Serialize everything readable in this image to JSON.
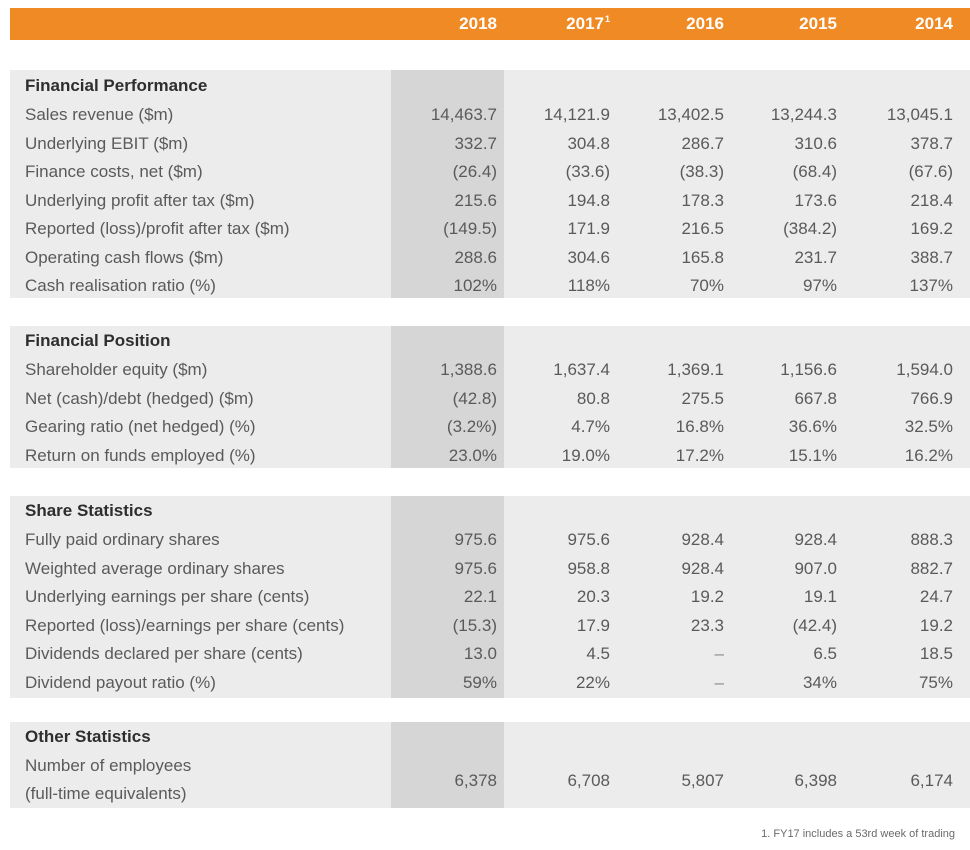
{
  "header": {
    "years": [
      {
        "label": "2018",
        "sup": ""
      },
      {
        "label": "2017",
        "sup": "1"
      },
      {
        "label": "2016",
        "sup": ""
      },
      {
        "label": "2015",
        "sup": ""
      },
      {
        "label": "2014",
        "sup": ""
      }
    ],
    "accent_color": "#f08a24",
    "highlight_column_color": "#d6d6d6",
    "panel_color": "#ececec"
  },
  "sections": [
    {
      "title": "Financial Performance",
      "rows": [
        {
          "label": "Sales revenue ($m)",
          "values": [
            "14,463.7",
            "14,121.9",
            "13,402.5",
            "13,244.3",
            "13,045.1"
          ]
        },
        {
          "label": "Underlying EBIT ($m)",
          "values": [
            "332.7",
            "304.8",
            "286.7",
            "310.6",
            "378.7"
          ]
        },
        {
          "label": "Finance costs, net ($m)",
          "values": [
            "(26.4)",
            "(33.6)",
            "(38.3)",
            "(68.4)",
            "(67.6)"
          ]
        },
        {
          "label": "Underlying profit after tax ($m)",
          "values": [
            "215.6",
            "194.8",
            "178.3",
            "173.6",
            "218.4"
          ]
        },
        {
          "label": "Reported (loss)/profit after tax ($m)",
          "values": [
            "(149.5)",
            "171.9",
            "216.5",
            "(384.2)",
            "169.2"
          ]
        },
        {
          "label": "Operating cash flows ($m)",
          "values": [
            "288.6",
            "304.6",
            "165.8",
            "231.7",
            "388.7"
          ]
        },
        {
          "label": "Cash realisation ratio (%)",
          "values": [
            "102%",
            "118%",
            "70%",
            "97%",
            "137%"
          ]
        }
      ]
    },
    {
      "title": "Financial Position",
      "rows": [
        {
          "label": "Shareholder equity ($m)",
          "values": [
            "1,388.6",
            "1,637.4",
            "1,369.1",
            "1,156.6",
            "1,594.0"
          ]
        },
        {
          "label": "Net (cash)/debt (hedged) ($m)",
          "values": [
            "(42.8)",
            "80.8",
            "275.5",
            "667.8",
            "766.9"
          ]
        },
        {
          "label": "Gearing ratio (net hedged) (%)",
          "values": [
            "(3.2%)",
            "4.7%",
            "16.8%",
            "36.6%",
            "32.5%"
          ]
        },
        {
          "label": "Return on funds employed (%)",
          "values": [
            "23.0%",
            "19.0%",
            "17.2%",
            "15.1%",
            "16.2%"
          ]
        }
      ]
    },
    {
      "title": "Share Statistics",
      "rows": [
        {
          "label": "Fully paid ordinary shares",
          "values": [
            "975.6",
            "975.6",
            "928.4",
            "928.4",
            "888.3"
          ]
        },
        {
          "label": "Weighted average ordinary shares",
          "values": [
            "975.6",
            "958.8",
            "928.4",
            "907.0",
            "882.7"
          ]
        },
        {
          "label": "Underlying earnings per share (cents)",
          "values": [
            "22.1",
            "20.3",
            "19.2",
            "19.1",
            "24.7"
          ]
        },
        {
          "label": "Reported (loss)/earnings per share (cents)",
          "values": [
            "(15.3)",
            "17.9",
            "23.3",
            "(42.4)",
            "19.2"
          ]
        },
        {
          "label": "Dividends declared per share (cents)",
          "values": [
            "13.0",
            "4.5",
            "–",
            "6.5",
            "18.5"
          ]
        },
        {
          "label": "Dividend payout ratio (%)",
          "values": [
            "59%",
            "22%",
            "–",
            "34%",
            "75%"
          ]
        }
      ]
    },
    {
      "title": "Other Statistics",
      "rows": [
        {
          "label_lines": [
            "Number of employees",
            "(full-time equivalents)"
          ],
          "values": [
            "6,378",
            "6,708",
            "5,807",
            "6,398",
            "6,174"
          ]
        }
      ]
    }
  ],
  "footnote": "1. FY17 includes a 53rd week of trading"
}
